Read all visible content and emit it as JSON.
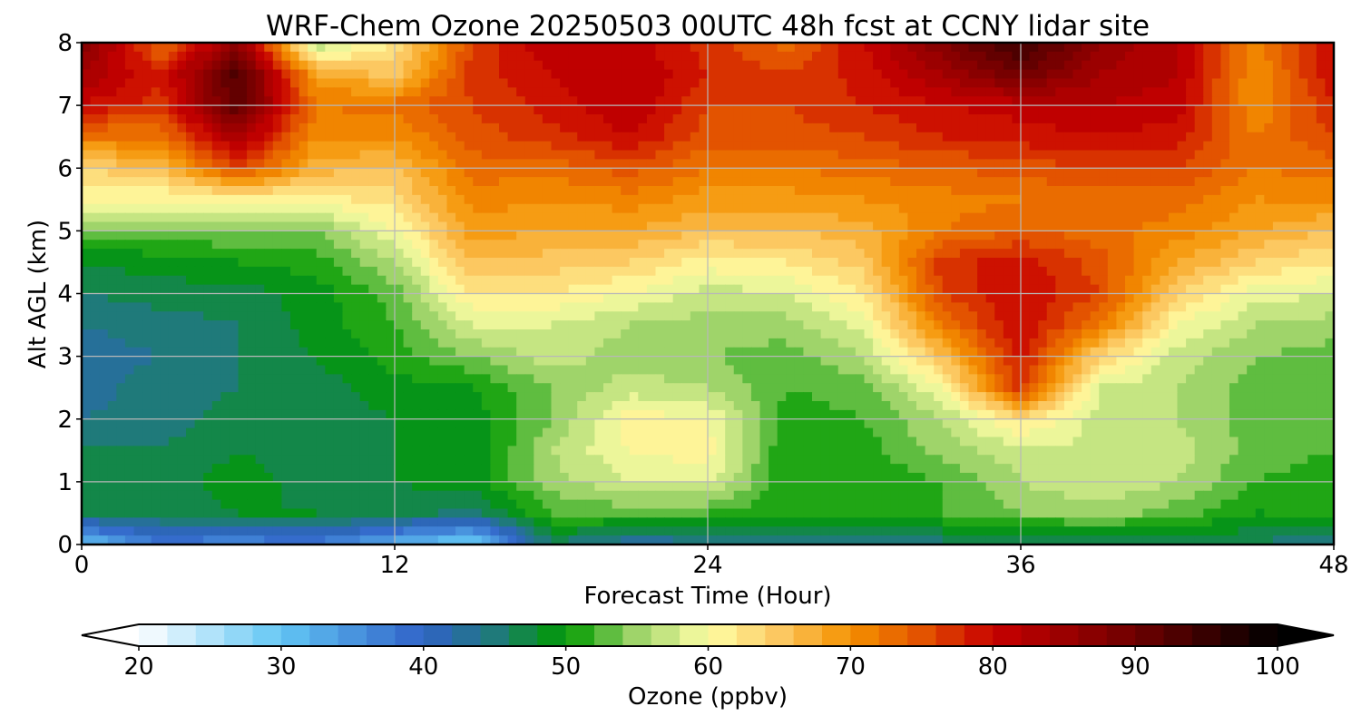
{
  "chart_data": {
    "type": "heatmap",
    "subtype": "filled-contour",
    "title": "WRF-Chem Ozone  20250503 00UTC 48h fcst at CCNY lidar site",
    "xlabel": "Forecast Time (Hour)",
    "ylabel": "Alt AGL (km)",
    "xlim": [
      0,
      48
    ],
    "ylim": [
      0,
      8
    ],
    "xticks": [
      0,
      12,
      24,
      36,
      48
    ],
    "yticks": [
      0,
      1,
      2,
      3,
      4,
      5,
      6,
      7,
      8
    ],
    "grid": true,
    "x": [
      0,
      3,
      6,
      9,
      12,
      15,
      18,
      21,
      24,
      27,
      30,
      33,
      36,
      39,
      42,
      45,
      48
    ],
    "y": [
      0,
      0.5,
      1,
      1.5,
      2,
      2.5,
      3,
      3.5,
      4,
      4.5,
      5,
      5.5,
      6,
      6.5,
      7,
      7.5,
      8
    ],
    "z": [
      [
        30,
        37,
        36,
        37,
        32,
        28,
        46,
        42,
        43,
        44,
        45,
        45,
        45,
        46,
        46,
        46,
        43
      ],
      [
        46,
        47,
        48,
        48,
        47,
        45,
        52,
        53,
        52,
        50,
        51,
        52,
        54,
        55,
        53,
        50,
        50
      ],
      [
        47,
        47,
        49,
        47,
        48,
        49,
        55,
        58,
        59,
        50,
        50,
        52,
        56,
        58,
        56,
        52,
        51
      ],
      [
        46,
        46,
        48,
        47,
        48,
        48,
        56,
        60,
        61,
        50,
        51,
        55,
        57,
        58,
        57,
        53,
        52
      ],
      [
        44,
        45,
        47,
        47,
        48,
        49,
        54,
        61,
        60,
        51,
        52,
        56,
        63,
        57,
        56,
        53,
        52
      ],
      [
        43,
        45,
        46,
        47,
        49,
        50,
        54,
        57,
        56,
        52,
        53,
        60,
        77,
        58,
        56,
        53,
        52
      ],
      [
        43,
        44,
        46,
        48,
        51,
        54,
        57,
        55,
        54,
        53,
        56,
        66,
        79,
        64,
        57,
        54,
        53
      ],
      [
        44,
        45,
        46,
        49,
        52,
        58,
        58,
        56,
        55,
        55,
        59,
        72,
        80,
        72,
        60,
        56,
        55
      ],
      [
        46,
        47,
        47,
        49,
        53,
        62,
        62,
        60,
        57,
        58,
        62,
        76,
        80,
        76,
        64,
        59,
        58
      ],
      [
        48,
        49,
        50,
        51,
        56,
        66,
        65,
        64,
        61,
        62,
        65,
        77,
        79,
        75,
        68,
        64,
        62
      ],
      [
        53,
        53,
        54,
        54,
        60,
        69,
        68,
        68,
        66,
        66,
        67,
        72,
        74,
        73,
        71,
        68,
        66
      ],
      [
        60,
        60,
        61,
        61,
        63,
        71,
        70,
        71,
        69,
        69,
        70,
        71,
        72,
        73,
        73,
        70,
        70
      ],
      [
        64,
        66,
        76,
        67,
        66,
        73,
        73,
        75,
        72,
        72,
        73,
        74,
        75,
        76,
        76,
        72,
        73
      ],
      [
        72,
        72,
        84,
        70,
        70,
        75,
        77,
        80,
        75,
        75,
        76,
        78,
        79,
        80,
        79,
        72,
        76
      ],
      [
        80,
        77,
        92,
        72,
        73,
        76,
        79,
        82,
        76,
        76,
        78,
        80,
        81,
        82,
        81,
        70,
        78
      ],
      [
        84,
        78,
        93,
        68,
        65,
        77,
        80,
        82,
        78,
        76,
        79,
        84,
        90,
        84,
        82,
        70,
        80
      ],
      [
        88,
        73,
        86,
        56,
        62,
        76,
        82,
        81,
        77,
        73,
        80,
        88,
        95,
        86,
        82,
        71,
        80
      ]
    ],
    "colorbar": {
      "label": "Ozone  (ppbv)",
      "orientation": "horizontal",
      "placement": "bottom",
      "range": [
        20,
        100
      ],
      "step": 2,
      "extend": "both",
      "ticks": [
        20,
        30,
        40,
        50,
        60,
        70,
        80,
        90,
        100
      ],
      "color_stops": [
        {
          "value": 20,
          "color": "#ffffff"
        },
        {
          "value": 30,
          "color": "#62c6f4"
        },
        {
          "value": 40,
          "color": "#3062c8"
        },
        {
          "value": 45,
          "color": "#1f7a7a"
        },
        {
          "value": 50,
          "color": "#009a00"
        },
        {
          "value": 55,
          "color": "#9fd46a"
        },
        {
          "value": 60,
          "color": "#ffffa6"
        },
        {
          "value": 65,
          "color": "#fcc861"
        },
        {
          "value": 70,
          "color": "#f59100"
        },
        {
          "value": 75,
          "color": "#e35300"
        },
        {
          "value": 80,
          "color": "#c80000"
        },
        {
          "value": 90,
          "color": "#6e0000"
        },
        {
          "value": 100,
          "color": "#000000"
        }
      ]
    }
  }
}
